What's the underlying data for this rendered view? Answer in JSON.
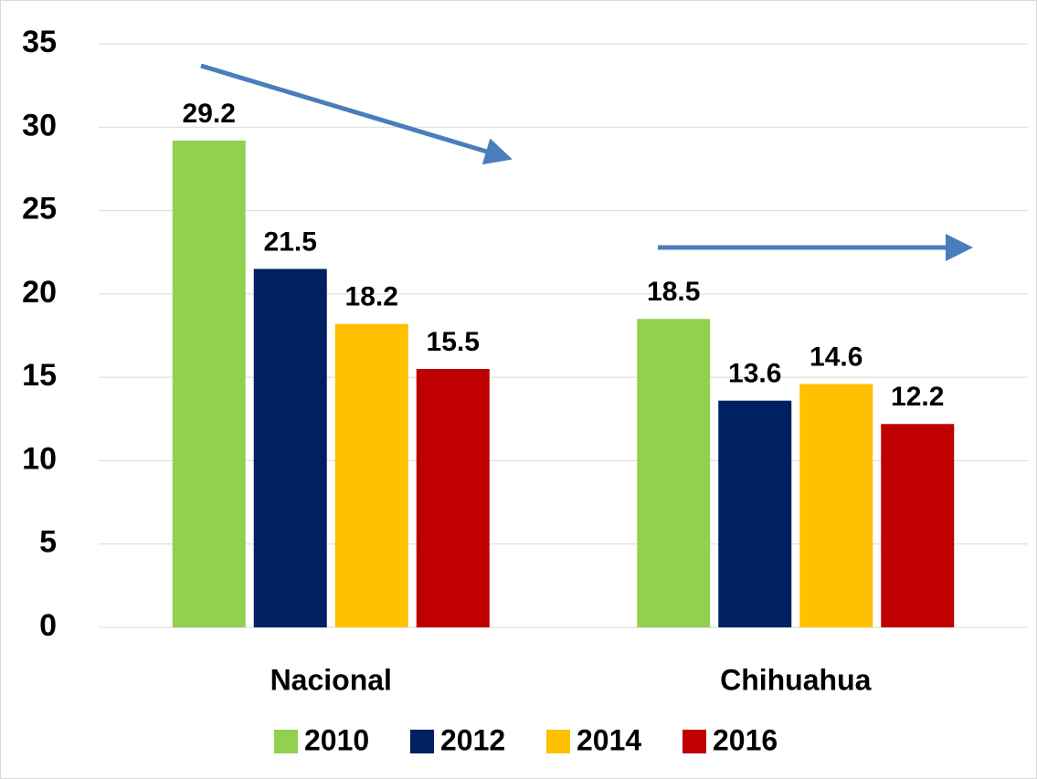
{
  "chart_data": {
    "type": "bar",
    "categories": [
      "Nacional",
      "Chihuahua"
    ],
    "series": [
      {
        "name": "2010",
        "color": "#92d050",
        "values": [
          29.2,
          18.5
        ]
      },
      {
        "name": "2012",
        "color": "#002060",
        "values": [
          21.5,
          13.6
        ]
      },
      {
        "name": "2014",
        "color": "#ffc000",
        "values": [
          18.2,
          14.6
        ]
      },
      {
        "name": "2016",
        "color": "#c00000",
        "values": [
          15.5,
          12.2
        ]
      }
    ],
    "ylim": [
      0,
      35
    ],
    "yticks": [
      0,
      5,
      10,
      15,
      20,
      25,
      30,
      35
    ],
    "grid": true,
    "legend": "bottom"
  }
}
